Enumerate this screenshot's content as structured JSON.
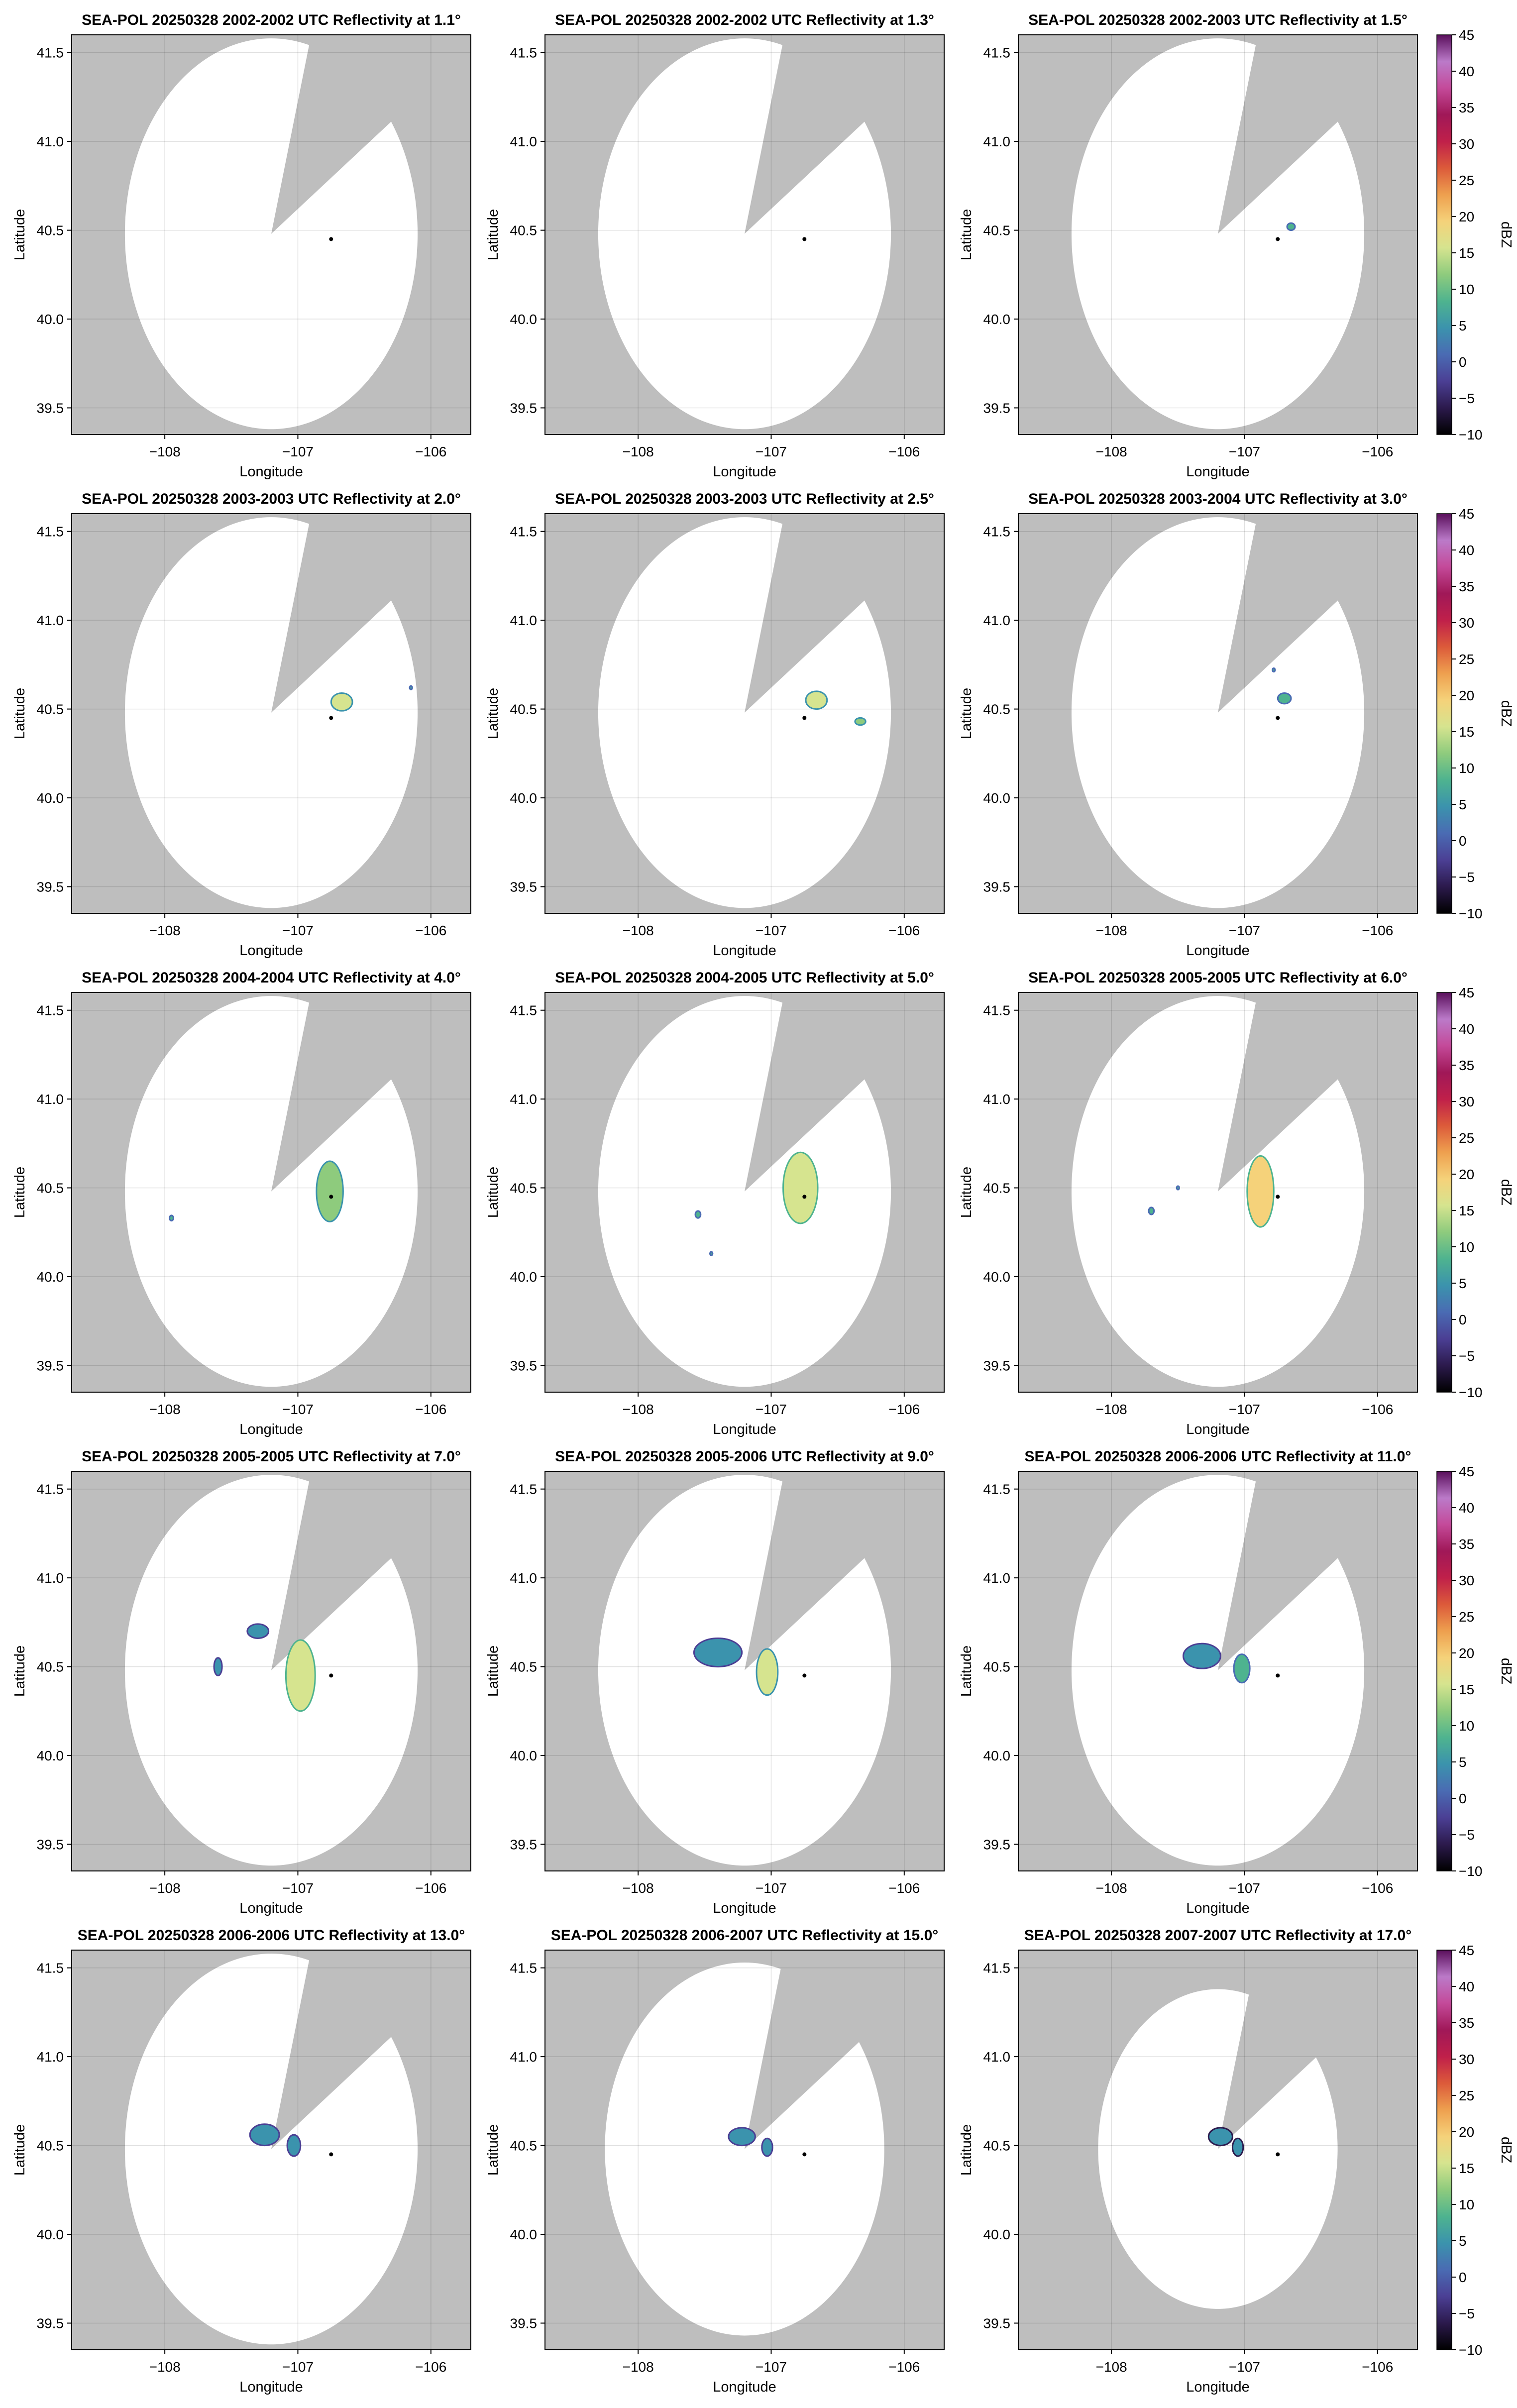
{
  "figure": {
    "colorbar": {
      "label": "dBZ",
      "ticks": [
        "45",
        "40",
        "35",
        "30",
        "25",
        "20",
        "15",
        "10",
        "5",
        "0",
        "−5",
        "−10"
      ],
      "range": [
        -10,
        45
      ],
      "colors": [
        "#000000",
        "#2c1a4d",
        "#4b3f94",
        "#4a6bb3",
        "#3b93ad",
        "#4eb38f",
        "#8ecb7d",
        "#d6e48f",
        "#f5d27a",
        "#eea04f",
        "#dc5a3a",
        "#c0204a",
        "#a01858",
        "#c44a9a",
        "#bb7ac9",
        "#5a0f5c"
      ]
    },
    "colors": {
      "outside": "#bebebe",
      "coverage": "#ffffff",
      "site": "#000000"
    }
  },
  "chart_data": [
    {
      "type": "heatmap",
      "title": "SEA-POL 20250328 2002-2002 UTC Reflectivity at 1.1°",
      "xlabel": "Longitude",
      "ylabel": "Latitude",
      "xlim": [
        -108.7,
        -105.7
      ],
      "ylim": [
        39.35,
        41.6
      ],
      "xticks": [
        "−108",
        "−107",
        "−106"
      ],
      "yticks": [
        "41.5",
        "41.0",
        "40.5",
        "40.0",
        "39.5"
      ],
      "grid": true,
      "colorbar": false,
      "site": [
        -106.75,
        40.45
      ],
      "coverage": {
        "center": [
          -107.2,
          40.48
        ],
        "radius_deg": 1.1,
        "blocked_sector_deg": [
          15,
          55
        ]
      },
      "echoes": []
    },
    {
      "type": "heatmap",
      "title": "SEA-POL 20250328 2002-2002 UTC Reflectivity at 1.3°",
      "xlabel": "Longitude",
      "ylabel": "Latitude",
      "xlim": [
        -108.7,
        -105.7
      ],
      "ylim": [
        39.35,
        41.6
      ],
      "xticks": [
        "−108",
        "−107",
        "−106"
      ],
      "yticks": [
        "41.5",
        "41.0",
        "40.5",
        "40.0",
        "39.5"
      ],
      "grid": true,
      "colorbar": false,
      "site": [
        -106.75,
        40.45
      ],
      "coverage": {
        "center": [
          -107.2,
          40.48
        ],
        "radius_deg": 1.1,
        "blocked_sector_deg": [
          15,
          55
        ]
      },
      "echoes": []
    },
    {
      "type": "heatmap",
      "title": "SEA-POL 20250328 2002-2003 UTC Reflectivity at 1.5°",
      "xlabel": "Longitude",
      "ylabel": "Latitude",
      "xlim": [
        -108.7,
        -105.7
      ],
      "ylim": [
        39.35,
        41.6
      ],
      "xticks": [
        "−108",
        "−107",
        "−106"
      ],
      "yticks": [
        "41.5",
        "41.0",
        "40.5",
        "40.0",
        "39.5"
      ],
      "grid": true,
      "colorbar": true,
      "site": [
        -106.75,
        40.45
      ],
      "coverage": {
        "center": [
          -107.2,
          40.48
        ],
        "radius_deg": 1.1,
        "blocked_sector_deg": [
          15,
          55
        ]
      },
      "echoes": [
        {
          "lon": -106.65,
          "lat": 40.52,
          "rx": 0.03,
          "ry": 0.02,
          "dbz": 8
        }
      ]
    },
    {
      "type": "heatmap",
      "title": "SEA-POL 20250328 2003-2003 UTC Reflectivity at 2.0°",
      "xlabel": "Longitude",
      "ylabel": "Latitude",
      "xlim": [
        -108.7,
        -105.7
      ],
      "ylim": [
        39.35,
        41.6
      ],
      "xticks": [
        "−108",
        "−107",
        "−106"
      ],
      "yticks": [
        "41.5",
        "41.0",
        "40.5",
        "40.0",
        "39.5"
      ],
      "grid": true,
      "colorbar": false,
      "site": [
        -106.75,
        40.45
      ],
      "coverage": {
        "center": [
          -107.2,
          40.48
        ],
        "radius_deg": 1.1,
        "blocked_sector_deg": [
          15,
          55
        ]
      },
      "echoes": [
        {
          "lon": -106.67,
          "lat": 40.54,
          "rx": 0.08,
          "ry": 0.05,
          "dbz": 14
        },
        {
          "lon": -106.15,
          "lat": 40.62,
          "rx": 0.01,
          "ry": 0.01,
          "dbz": 10
        }
      ]
    },
    {
      "type": "heatmap",
      "title": "SEA-POL 20250328 2003-2003 UTC Reflectivity at 2.5°",
      "xlabel": "Longitude",
      "ylabel": "Latitude",
      "xlim": [
        -108.7,
        -105.7
      ],
      "ylim": [
        39.35,
        41.6
      ],
      "xticks": [
        "−108",
        "−107",
        "−106"
      ],
      "yticks": [
        "41.5",
        "41.0",
        "40.5",
        "40.0",
        "39.5"
      ],
      "grid": true,
      "colorbar": false,
      "site": [
        -106.75,
        40.45
      ],
      "coverage": {
        "center": [
          -107.2,
          40.48
        ],
        "radius_deg": 1.1,
        "blocked_sector_deg": [
          15,
          55
        ]
      },
      "echoes": [
        {
          "lon": -106.66,
          "lat": 40.55,
          "rx": 0.08,
          "ry": 0.05,
          "dbz": 14
        },
        {
          "lon": -106.33,
          "lat": 40.43,
          "rx": 0.04,
          "ry": 0.02,
          "dbz": 12
        }
      ]
    },
    {
      "type": "heatmap",
      "title": "SEA-POL 20250328 2003-2004 UTC Reflectivity at 3.0°",
      "xlabel": "Longitude",
      "ylabel": "Latitude",
      "xlim": [
        -108.7,
        -105.7
      ],
      "ylim": [
        39.35,
        41.6
      ],
      "xticks": [
        "−108",
        "−107",
        "−106"
      ],
      "yticks": [
        "41.5",
        "41.0",
        "40.5",
        "40.0",
        "39.5"
      ],
      "grid": true,
      "colorbar": true,
      "site": [
        -106.75,
        40.45
      ],
      "coverage": {
        "center": [
          -107.2,
          40.48
        ],
        "radius_deg": 1.1,
        "blocked_sector_deg": [
          15,
          55
        ]
      },
      "echoes": [
        {
          "lon": -106.7,
          "lat": 40.56,
          "rx": 0.05,
          "ry": 0.03,
          "dbz": 10
        },
        {
          "lon": -106.78,
          "lat": 40.72,
          "rx": 0.01,
          "ry": 0.01,
          "dbz": 8
        }
      ]
    },
    {
      "type": "heatmap",
      "title": "SEA-POL 20250328 2004-2004 UTC Reflectivity at 4.0°",
      "xlabel": "Longitude",
      "ylabel": "Latitude",
      "xlim": [
        -108.7,
        -105.7
      ],
      "ylim": [
        39.35,
        41.6
      ],
      "xticks": [
        "−108",
        "−107",
        "−106"
      ],
      "yticks": [
        "41.5",
        "41.0",
        "40.5",
        "40.0",
        "39.5"
      ],
      "grid": true,
      "colorbar": false,
      "site": [
        -106.75,
        40.45
      ],
      "coverage": {
        "center": [
          -107.2,
          40.48
        ],
        "radius_deg": 1.1,
        "blocked_sector_deg": [
          15,
          55
        ]
      },
      "echoes": [
        {
          "lon": -106.76,
          "lat": 40.48,
          "rx": 0.1,
          "ry": 0.17,
          "dbz": 12
        },
        {
          "lon": -107.95,
          "lat": 40.33,
          "rx": 0.015,
          "ry": 0.015,
          "dbz": 8
        }
      ]
    },
    {
      "type": "heatmap",
      "title": "SEA-POL 20250328 2004-2005 UTC Reflectivity at 5.0°",
      "xlabel": "Longitude",
      "ylabel": "Latitude",
      "xlim": [
        -108.7,
        -105.7
      ],
      "ylim": [
        39.35,
        41.6
      ],
      "xticks": [
        "−108",
        "−107",
        "−106"
      ],
      "yticks": [
        "41.5",
        "41.0",
        "40.5",
        "40.0",
        "39.5"
      ],
      "grid": true,
      "colorbar": false,
      "site": [
        -106.75,
        40.45
      ],
      "coverage": {
        "center": [
          -107.2,
          40.48
        ],
        "radius_deg": 1.1,
        "blocked_sector_deg": [
          15,
          55
        ]
      },
      "echoes": [
        {
          "lon": -106.78,
          "lat": 40.5,
          "rx": 0.13,
          "ry": 0.2,
          "dbz": 16
        },
        {
          "lon": -107.55,
          "lat": 40.35,
          "rx": 0.02,
          "ry": 0.02,
          "dbz": 8
        },
        {
          "lon": -107.45,
          "lat": 40.13,
          "rx": 0.01,
          "ry": 0.01,
          "dbz": 8
        }
      ]
    },
    {
      "type": "heatmap",
      "title": "SEA-POL 20250328 2005-2005 UTC Reflectivity at 6.0°",
      "xlabel": "Longitude",
      "ylabel": "Latitude",
      "xlim": [
        -108.7,
        -105.7
      ],
      "ylim": [
        39.35,
        41.6
      ],
      "xticks": [
        "−108",
        "−107",
        "−106"
      ],
      "yticks": [
        "41.5",
        "41.0",
        "40.5",
        "40.0",
        "39.5"
      ],
      "grid": true,
      "colorbar": true,
      "site": [
        -106.75,
        40.45
      ],
      "coverage": {
        "center": [
          -107.2,
          40.48
        ],
        "radius_deg": 1.1,
        "blocked_sector_deg": [
          15,
          55
        ]
      },
      "echoes": [
        {
          "lon": -106.88,
          "lat": 40.48,
          "rx": 0.1,
          "ry": 0.2,
          "dbz": 18
        },
        {
          "lon": -107.7,
          "lat": 40.37,
          "rx": 0.02,
          "ry": 0.02,
          "dbz": 8
        },
        {
          "lon": -107.5,
          "lat": 40.5,
          "rx": 0.01,
          "ry": 0.01,
          "dbz": 8
        }
      ]
    },
    {
      "type": "heatmap",
      "title": "SEA-POL 20250328 2005-2005 UTC Reflectivity at 7.0°",
      "xlabel": "Longitude",
      "ylabel": "Latitude",
      "xlim": [
        -108.7,
        -105.7
      ],
      "ylim": [
        39.35,
        41.6
      ],
      "xticks": [
        "−108",
        "−107",
        "−106"
      ],
      "yticks": [
        "41.5",
        "41.0",
        "40.5",
        "40.0",
        "39.5"
      ],
      "grid": true,
      "colorbar": false,
      "site": [
        -106.75,
        40.45
      ],
      "coverage": {
        "center": [
          -107.2,
          40.48
        ],
        "radius_deg": 1.1,
        "blocked_sector_deg": [
          15,
          55
        ]
      },
      "echoes": [
        {
          "lon": -106.98,
          "lat": 40.45,
          "rx": 0.11,
          "ry": 0.2,
          "dbz": 16
        },
        {
          "lon": -107.3,
          "lat": 40.7,
          "rx": 0.08,
          "ry": 0.04,
          "dbz": 4
        },
        {
          "lon": -107.6,
          "lat": 40.5,
          "rx": 0.03,
          "ry": 0.05,
          "dbz": 5
        }
      ]
    },
    {
      "type": "heatmap",
      "title": "SEA-POL 20250328 2005-2006 UTC Reflectivity at 9.0°",
      "xlabel": "Longitude",
      "ylabel": "Latitude",
      "xlim": [
        -108.7,
        -105.7
      ],
      "ylim": [
        39.35,
        41.6
      ],
      "xticks": [
        "−108",
        "−107",
        "−106"
      ],
      "yticks": [
        "41.5",
        "41.0",
        "40.5",
        "40.0",
        "39.5"
      ],
      "grid": true,
      "colorbar": false,
      "site": [
        -106.75,
        40.45
      ],
      "coverage": {
        "center": [
          -107.2,
          40.48
        ],
        "radius_deg": 1.1,
        "blocked_sector_deg": [
          15,
          55
        ]
      },
      "echoes": [
        {
          "lon": -107.4,
          "lat": 40.58,
          "rx": 0.18,
          "ry": 0.08,
          "dbz": 6
        },
        {
          "lon": -107.03,
          "lat": 40.47,
          "rx": 0.08,
          "ry": 0.13,
          "dbz": 14
        }
      ]
    },
    {
      "type": "heatmap",
      "title": "SEA-POL 20250328 2006-2006 UTC Reflectivity at 11.0°",
      "xlabel": "Longitude",
      "ylabel": "Latitude",
      "xlim": [
        -108.7,
        -105.7
      ],
      "ylim": [
        39.35,
        41.6
      ],
      "xticks": [
        "−108",
        "−107",
        "−106"
      ],
      "yticks": [
        "41.5",
        "41.0",
        "40.5",
        "40.0",
        "39.5"
      ],
      "grid": true,
      "colorbar": true,
      "site": [
        -106.75,
        40.45
      ],
      "coverage": {
        "center": [
          -107.2,
          40.48
        ],
        "radius_deg": 1.1,
        "blocked_sector_deg": [
          15,
          55
        ]
      },
      "echoes": [
        {
          "lon": -107.32,
          "lat": 40.56,
          "rx": 0.14,
          "ry": 0.07,
          "dbz": 6
        },
        {
          "lon": -107.02,
          "lat": 40.49,
          "rx": 0.06,
          "ry": 0.08,
          "dbz": 8
        }
      ]
    },
    {
      "type": "heatmap",
      "title": "SEA-POL 20250328 2006-2006 UTC Reflectivity at 13.0°",
      "xlabel": "Longitude",
      "ylabel": "Latitude",
      "xlim": [
        -108.7,
        -105.7
      ],
      "ylim": [
        39.35,
        41.6
      ],
      "xticks": [
        "−108",
        "−107",
        "−106"
      ],
      "yticks": [
        "41.5",
        "41.0",
        "40.5",
        "40.0",
        "39.5"
      ],
      "grid": true,
      "colorbar": false,
      "site": [
        -106.75,
        40.45
      ],
      "coverage": {
        "center": [
          -107.2,
          40.48
        ],
        "radius_deg": 1.1,
        "blocked_sector_deg": [
          15,
          55
        ]
      },
      "echoes": [
        {
          "lon": -107.25,
          "lat": 40.56,
          "rx": 0.11,
          "ry": 0.06,
          "dbz": 4
        },
        {
          "lon": -107.03,
          "lat": 40.5,
          "rx": 0.05,
          "ry": 0.06,
          "dbz": 4
        }
      ]
    },
    {
      "type": "heatmap",
      "title": "SEA-POL 20250328 2006-2007 UTC Reflectivity at 15.0°",
      "xlabel": "Longitude",
      "ylabel": "Latitude",
      "xlim": [
        -108.7,
        -105.7
      ],
      "ylim": [
        39.35,
        41.6
      ],
      "xticks": [
        "−108",
        "−107",
        "−106"
      ],
      "yticks": [
        "41.5",
        "41.0",
        "40.5",
        "40.0",
        "39.5"
      ],
      "grid": true,
      "colorbar": false,
      "site": [
        -106.75,
        40.45
      ],
      "coverage": {
        "center": [
          -107.2,
          40.48
        ],
        "radius_deg": 1.05,
        "blocked_sector_deg": [
          15,
          55
        ]
      },
      "echoes": [
        {
          "lon": -107.22,
          "lat": 40.55,
          "rx": 0.1,
          "ry": 0.05,
          "dbz": 4
        },
        {
          "lon": -107.03,
          "lat": 40.49,
          "rx": 0.04,
          "ry": 0.05,
          "dbz": 4
        }
      ]
    },
    {
      "type": "heatmap",
      "title": "SEA-POL 20250328 2007-2007 UTC Reflectivity at 17.0°",
      "xlabel": "Longitude",
      "ylabel": "Latitude",
      "xlim": [
        -108.7,
        -105.7
      ],
      "ylim": [
        39.35,
        41.6
      ],
      "xticks": [
        "−108",
        "−107",
        "−106"
      ],
      "yticks": [
        "41.5",
        "41.0",
        "40.5",
        "40.0",
        "39.5"
      ],
      "grid": true,
      "colorbar": true,
      "site": [
        -106.75,
        40.45
      ],
      "coverage": {
        "center": [
          -107.2,
          40.48
        ],
        "radius_deg": 0.9,
        "blocked_sector_deg": [
          15,
          55
        ]
      },
      "echoes": [
        {
          "lon": -107.18,
          "lat": 40.55,
          "rx": 0.09,
          "ry": 0.05,
          "dbz": 3
        },
        {
          "lon": -107.05,
          "lat": 40.49,
          "rx": 0.04,
          "ry": 0.05,
          "dbz": 3
        }
      ]
    }
  ]
}
